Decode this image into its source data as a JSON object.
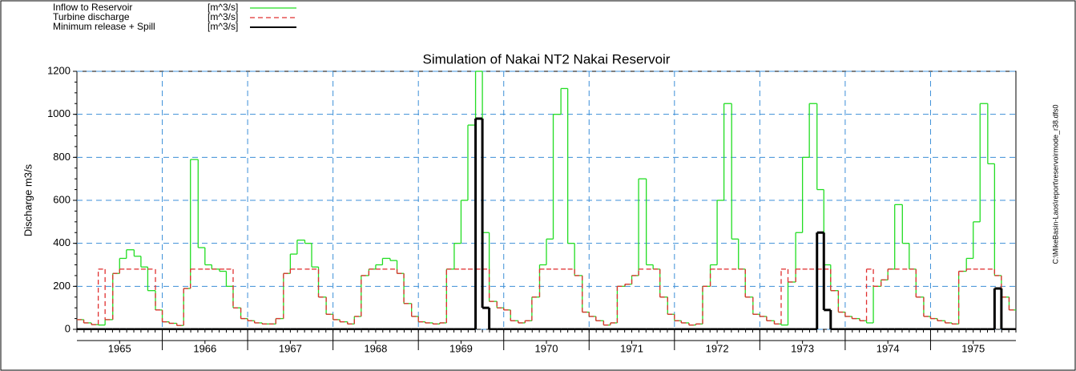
{
  "chart_data": {
    "type": "step",
    "title": "Simulation of Nakai NT2 Nakai Reservoir",
    "y_label": "Discharge m3/s",
    "side_note": "C:\\MikeBasin-Laos\\report\\reservoirmode_r38.dfs0",
    "xlim": [
      1965,
      1976
    ],
    "xticks": [
      {
        "value": 1965.5,
        "label": "1965"
      },
      {
        "value": 1966.5,
        "label": "1966"
      },
      {
        "value": 1967.5,
        "label": "1967"
      },
      {
        "value": 1968.5,
        "label": "1968"
      },
      {
        "value": 1969.5,
        "label": "1969"
      },
      {
        "value": 1970.5,
        "label": "1970"
      },
      {
        "value": 1971.5,
        "label": "1971"
      },
      {
        "value": 1972.5,
        "label": "1972"
      },
      {
        "value": 1973.5,
        "label": "1973"
      },
      {
        "value": 1974.5,
        "label": "1974"
      },
      {
        "value": 1975.5,
        "label": "1975"
      }
    ],
    "xgrid": [
      1966,
      1967,
      1968,
      1969,
      1970,
      1971,
      1972,
      1973,
      1974,
      1975
    ],
    "ylim": [
      0,
      1200
    ],
    "yticks": [
      0,
      200,
      400,
      600,
      800,
      1000,
      1200
    ],
    "grid": true,
    "x": [
      1965,
      1965.08,
      1965.17,
      1965.25,
      1965.33,
      1965.42,
      1965.5,
      1965.58,
      1965.67,
      1965.75,
      1965.83,
      1965.92,
      1966,
      1966.08,
      1966.17,
      1966.25,
      1966.33,
      1966.42,
      1966.5,
      1966.58,
      1966.67,
      1966.75,
      1966.83,
      1966.92,
      1967,
      1967.08,
      1967.17,
      1967.25,
      1967.33,
      1967.42,
      1967.5,
      1967.58,
      1967.67,
      1967.75,
      1967.83,
      1967.92,
      1968,
      1968.08,
      1968.17,
      1968.25,
      1968.33,
      1968.42,
      1968.5,
      1968.58,
      1968.67,
      1968.75,
      1968.83,
      1968.92,
      1969,
      1969.08,
      1969.17,
      1969.25,
      1969.33,
      1969.42,
      1969.5,
      1969.58,
      1969.67,
      1969.75,
      1969.83,
      1969.92,
      1970,
      1970.08,
      1970.17,
      1970.25,
      1970.33,
      1970.42,
      1970.5,
      1970.58,
      1970.67,
      1970.75,
      1970.83,
      1970.92,
      1971,
      1971.08,
      1971.17,
      1971.25,
      1971.33,
      1971.42,
      1971.5,
      1971.58,
      1971.67,
      1971.75,
      1971.83,
      1971.92,
      1972,
      1972.08,
      1972.17,
      1972.25,
      1972.33,
      1972.42,
      1972.5,
      1972.58,
      1972.67,
      1972.75,
      1972.83,
      1972.92,
      1973,
      1973.08,
      1973.17,
      1973.25,
      1973.33,
      1973.42,
      1973.5,
      1973.58,
      1973.67,
      1973.75,
      1973.83,
      1973.92,
      1974,
      1974.08,
      1974.17,
      1974.25,
      1974.33,
      1974.42,
      1974.5,
      1974.58,
      1974.67,
      1974.75,
      1974.83,
      1974.92,
      1975,
      1975.08,
      1975.17,
      1975.25,
      1975.33,
      1975.42,
      1975.5,
      1975.58,
      1975.67,
      1975.75,
      1975.83,
      1975.92
    ],
    "series": [
      {
        "name": "Inflow to Reservoir",
        "unit": "[m^3/s]",
        "color": "#22dd22",
        "dash": false,
        "values": [
          45,
          30,
          22,
          20,
          45,
          260,
          330,
          370,
          340,
          290,
          180,
          90,
          35,
          28,
          18,
          190,
          790,
          380,
          300,
          280,
          270,
          200,
          100,
          50,
          40,
          30,
          25,
          25,
          50,
          260,
          350,
          415,
          400,
          290,
          150,
          70,
          45,
          35,
          25,
          60,
          250,
          280,
          300,
          330,
          320,
          260,
          120,
          60,
          35,
          30,
          25,
          30,
          280,
          400,
          600,
          950,
          1200,
          450,
          130,
          100,
          90,
          40,
          30,
          40,
          150,
          300,
          420,
          1000,
          1120,
          400,
          250,
          80,
          60,
          40,
          20,
          30,
          200,
          210,
          250,
          700,
          300,
          280,
          150,
          70,
          40,
          30,
          20,
          25,
          200,
          300,
          600,
          1050,
          420,
          280,
          150,
          70,
          60,
          40,
          25,
          20,
          220,
          450,
          800,
          1050,
          650,
          300,
          180,
          80,
          60,
          50,
          40,
          30,
          200,
          230,
          280,
          580,
          400,
          280,
          150,
          60,
          50,
          40,
          30,
          25,
          270,
          330,
          500,
          1050,
          770,
          250,
          150,
          90
        ]
      },
      {
        "name": "Turbine discharge",
        "unit": "[m^3/s]",
        "color": "#e03030",
        "dash": true,
        "values": [
          45,
          30,
          22,
          280,
          45,
          260,
          280,
          280,
          280,
          280,
          280,
          90,
          35,
          28,
          18,
          190,
          280,
          280,
          280,
          280,
          280,
          280,
          100,
          50,
          40,
          30,
          25,
          25,
          50,
          260,
          280,
          280,
          280,
          280,
          150,
          70,
          45,
          35,
          25,
          60,
          250,
          280,
          280,
          280,
          280,
          260,
          120,
          60,
          35,
          30,
          25,
          30,
          280,
          280,
          280,
          280,
          280,
          280,
          130,
          100,
          90,
          40,
          30,
          40,
          150,
          280,
          280,
          280,
          280,
          280,
          250,
          80,
          60,
          40,
          20,
          30,
          200,
          210,
          250,
          280,
          280,
          280,
          150,
          70,
          40,
          30,
          20,
          25,
          200,
          280,
          280,
          280,
          280,
          280,
          150,
          70,
          60,
          40,
          25,
          280,
          220,
          280,
          280,
          280,
          280,
          280,
          180,
          80,
          60,
          50,
          40,
          280,
          200,
          230,
          280,
          280,
          280,
          280,
          150,
          60,
          50,
          40,
          30,
          25,
          270,
          280,
          280,
          280,
          280,
          250,
          150,
          90
        ]
      },
      {
        "name": "Minimum release + Spill",
        "unit": "[m^3/s]",
        "color": "#000000",
        "dash": false,
        "values": [
          0,
          0,
          0,
          0,
          0,
          0,
          0,
          0,
          0,
          0,
          0,
          0,
          0,
          0,
          0,
          0,
          0,
          0,
          0,
          0,
          0,
          0,
          0,
          0,
          0,
          0,
          0,
          0,
          0,
          0,
          0,
          0,
          0,
          0,
          0,
          0,
          0,
          0,
          0,
          0,
          0,
          0,
          0,
          0,
          0,
          0,
          0,
          0,
          0,
          0,
          0,
          0,
          0,
          0,
          0,
          0,
          980,
          100,
          0,
          0,
          0,
          0,
          0,
          0,
          0,
          0,
          0,
          0,
          0,
          0,
          0,
          0,
          0,
          0,
          0,
          0,
          0,
          0,
          0,
          0,
          0,
          0,
          0,
          0,
          0,
          0,
          0,
          0,
          0,
          0,
          0,
          0,
          0,
          0,
          0,
          0,
          0,
          0,
          0,
          0,
          0,
          0,
          0,
          0,
          450,
          90,
          0,
          0,
          0,
          0,
          0,
          0,
          0,
          0,
          0,
          0,
          0,
          0,
          0,
          0,
          0,
          0,
          0,
          0,
          0,
          0,
          0,
          0,
          0,
          190,
          0,
          0
        ]
      }
    ]
  }
}
